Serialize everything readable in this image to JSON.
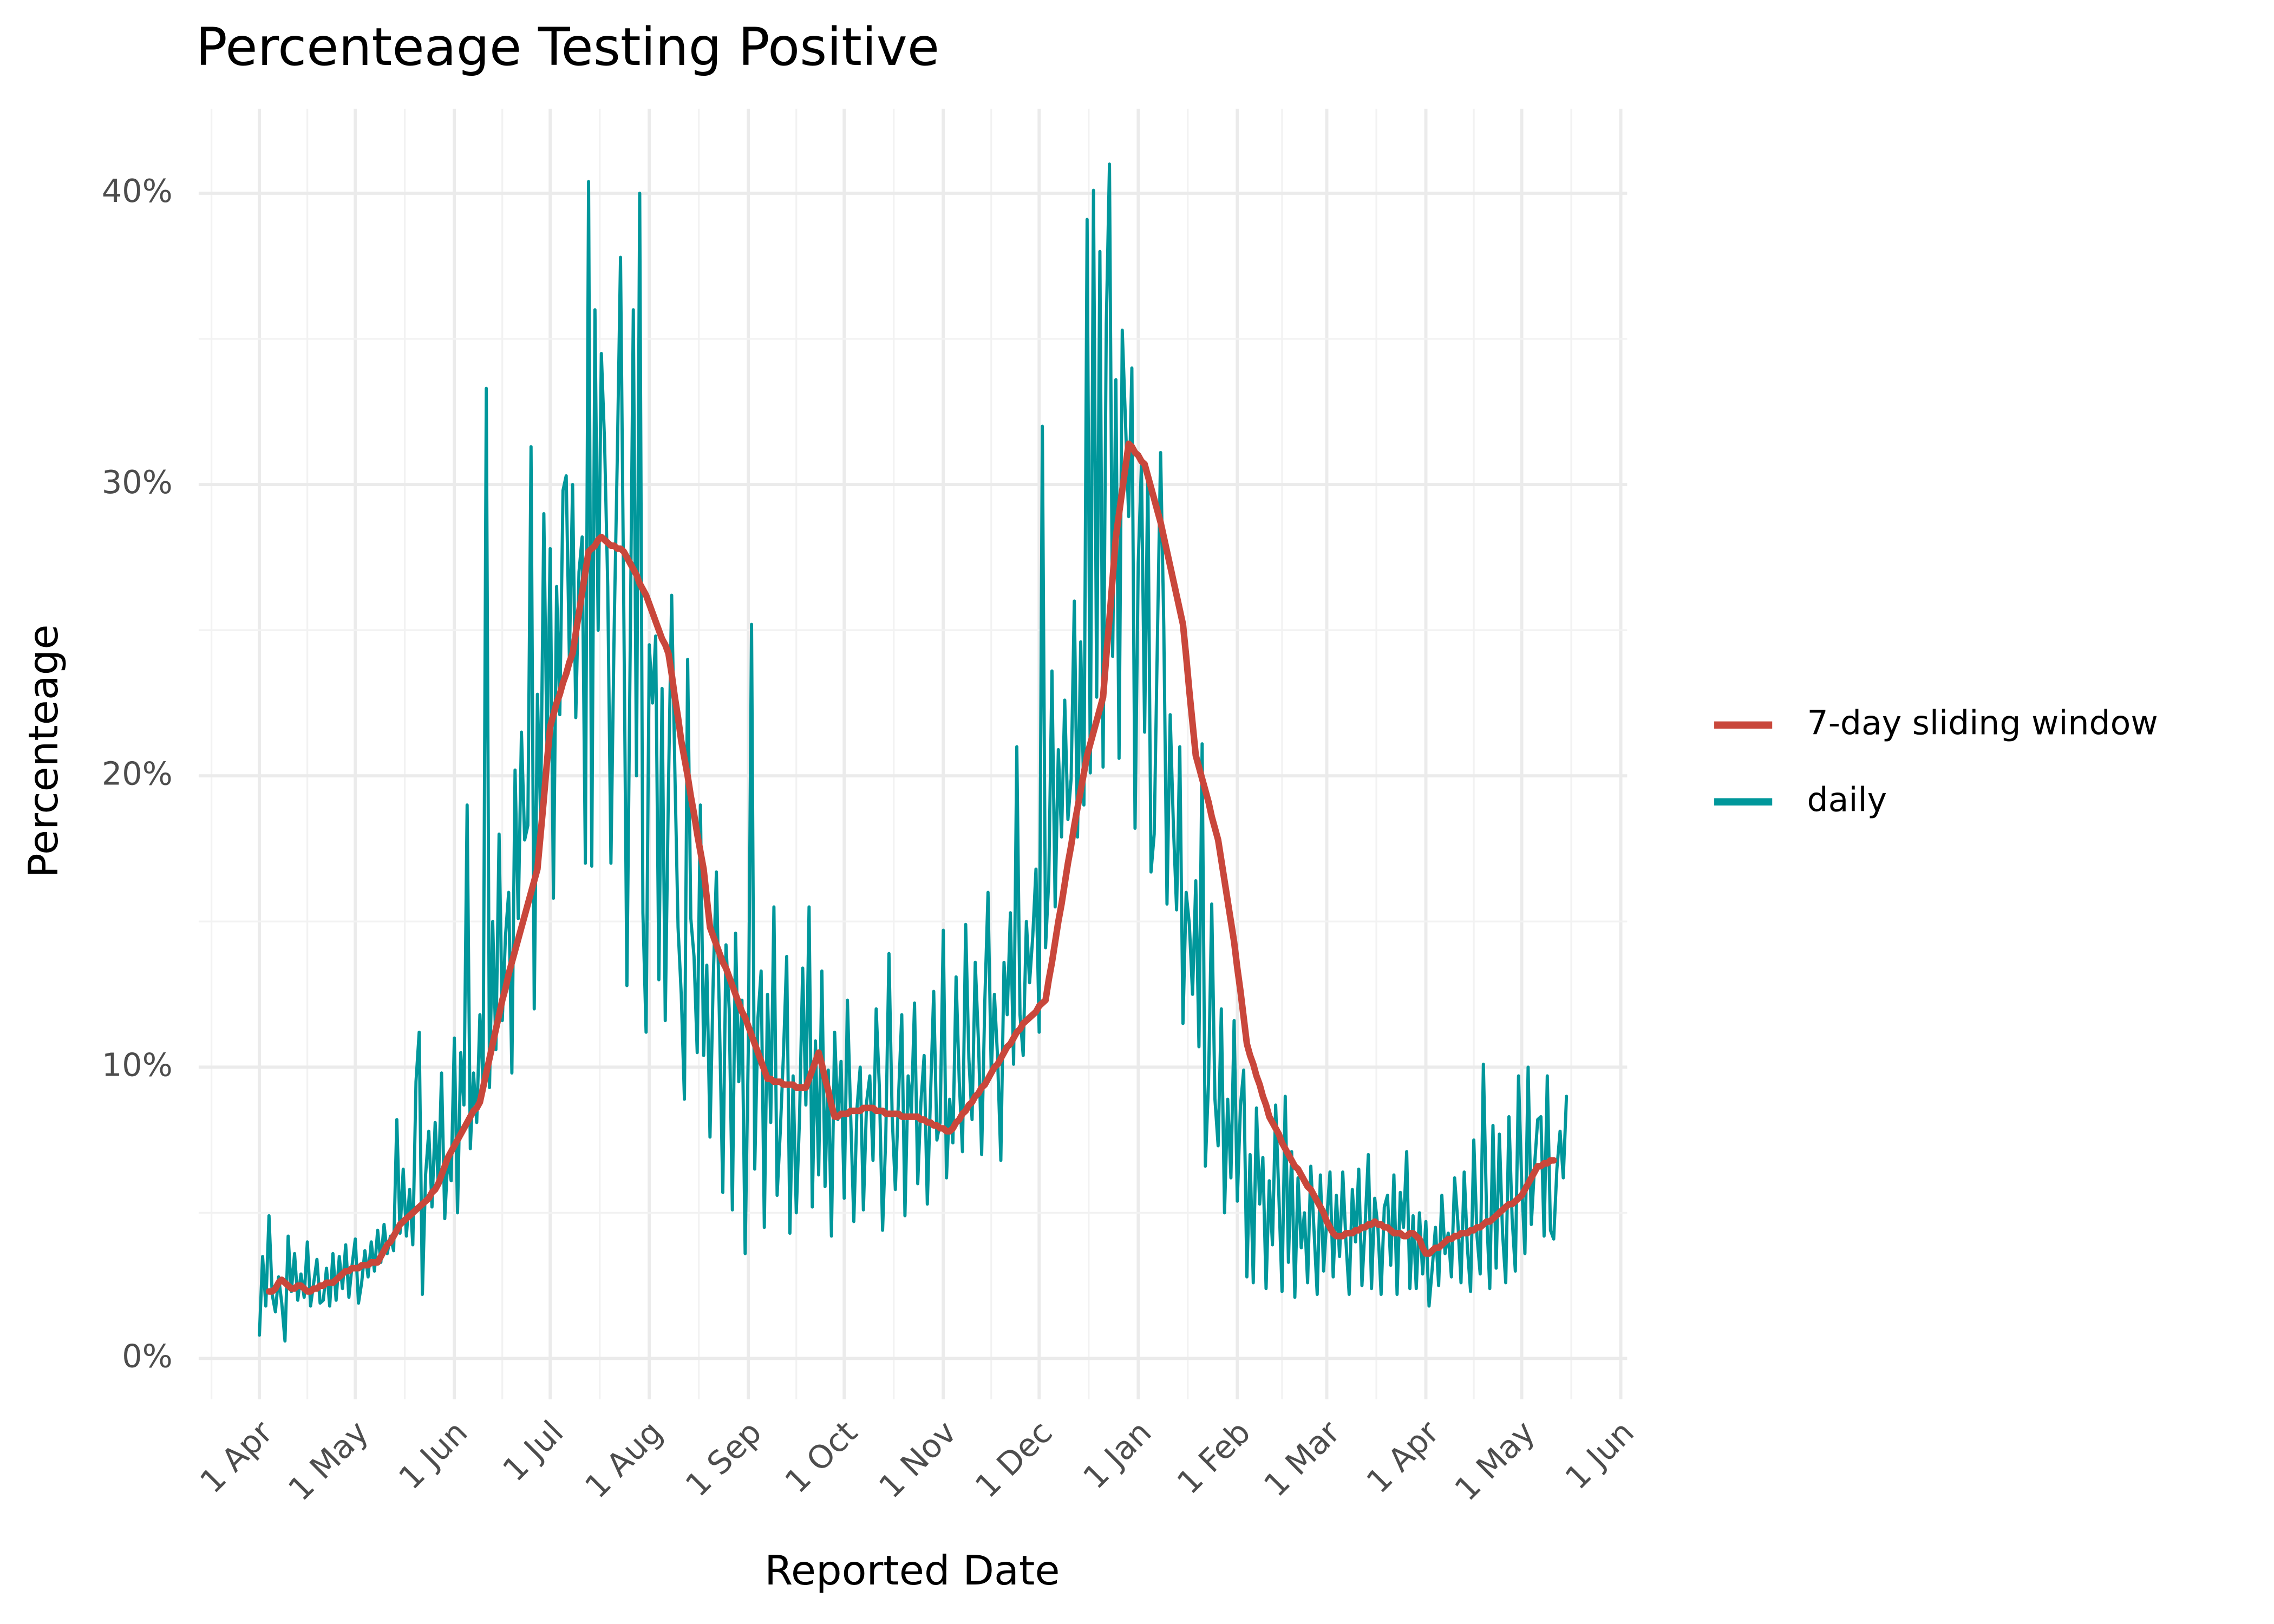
{
  "chart_data": {
    "type": "line",
    "title": "Percenteage Testing Positive",
    "x_label": "Reported Date",
    "y_label": "Percenteage",
    "grid": true,
    "legend_position": "right",
    "xlim": [
      -19,
      428
    ],
    "ylim": [
      -1.4,
      42.9
    ],
    "xticks": [
      {
        "value": 0,
        "label": "1 Apr"
      },
      {
        "value": 30,
        "label": "1 May"
      },
      {
        "value": 61,
        "label": "1 Jun"
      },
      {
        "value": 91,
        "label": "1 Jul"
      },
      {
        "value": 122,
        "label": "1 Aug"
      },
      {
        "value": 153,
        "label": "1 Sep"
      },
      {
        "value": 183,
        "label": "1 Oct"
      },
      {
        "value": 214,
        "label": "1 Nov"
      },
      {
        "value": 244,
        "label": "1 Dec"
      },
      {
        "value": 275,
        "label": "1 Jan"
      },
      {
        "value": 306,
        "label": "1 Feb"
      },
      {
        "value": 334,
        "label": "1 Mar"
      },
      {
        "value": 365,
        "label": "1 Apr"
      },
      {
        "value": 395,
        "label": "1 May"
      },
      {
        "value": 426,
        "label": "1 Jun"
      }
    ],
    "yticks": [
      {
        "value": 0,
        "label": "0%"
      },
      {
        "value": 10,
        "label": "10%"
      },
      {
        "value": 20,
        "label": "20%"
      },
      {
        "value": 30,
        "label": "30%"
      },
      {
        "value": 40,
        "label": "40%"
      }
    ],
    "x": [
      0,
      1,
      2,
      3,
      4,
      5,
      6,
      7,
      8,
      9,
      10,
      11,
      12,
      13,
      14,
      15,
      16,
      17,
      18,
      19,
      20,
      21,
      22,
      23,
      24,
      25,
      26,
      27,
      28,
      29,
      30,
      31,
      32,
      33,
      34,
      35,
      36,
      37,
      38,
      39,
      40,
      41,
      42,
      43,
      44,
      45,
      46,
      47,
      48,
      49,
      50,
      51,
      52,
      53,
      54,
      55,
      56,
      57,
      58,
      59,
      60,
      61,
      62,
      63,
      64,
      65,
      66,
      67,
      68,
      69,
      70,
      71,
      72,
      73,
      74,
      75,
      76,
      77,
      78,
      79,
      80,
      81,
      82,
      83,
      84,
      85,
      86,
      87,
      88,
      89,
      90,
      91,
      92,
      93,
      94,
      95,
      96,
      97,
      98,
      99,
      100,
      101,
      102,
      103,
      104,
      105,
      106,
      107,
      108,
      109,
      110,
      111,
      112,
      113,
      114,
      115,
      116,
      117,
      118,
      119,
      120,
      121,
      122,
      123,
      124,
      125,
      126,
      127,
      128,
      129,
      130,
      131,
      132,
      133,
      134,
      135,
      136,
      137,
      138,
      139,
      140,
      141,
      142,
      143,
      144,
      145,
      146,
      147,
      148,
      149,
      150,
      151,
      152,
      153,
      154,
      155,
      156,
      157,
      158,
      159,
      160,
      161,
      162,
      163,
      164,
      165,
      166,
      167,
      168,
      169,
      170,
      171,
      172,
      173,
      174,
      175,
      176,
      177,
      178,
      179,
      180,
      181,
      182,
      183,
      184,
      185,
      186,
      187,
      188,
      189,
      190,
      191,
      192,
      193,
      194,
      195,
      196,
      197,
      198,
      199,
      200,
      201,
      202,
      203,
      204,
      205,
      206,
      207,
      208,
      209,
      210,
      211,
      212,
      213,
      214,
      215,
      216,
      217,
      218,
      219,
      220,
      221,
      222,
      223,
      224,
      225,
      226,
      227,
      228,
      229,
      230,
      231,
      232,
      233,
      234,
      235,
      236,
      237,
      238,
      239,
      240,
      241,
      242,
      243,
      244,
      245,
      246,
      247,
      248,
      249,
      250,
      251,
      252,
      253,
      254,
      255,
      256,
      257,
      258,
      259,
      260,
      261,
      262,
      263,
      264,
      265,
      266,
      267,
      268,
      269,
      270,
      271,
      272,
      273,
      274,
      275,
      276,
      277,
      278,
      279,
      280,
      281,
      282,
      283,
      284,
      285,
      286,
      287,
      288,
      289,
      290,
      291,
      292,
      293,
      294,
      295,
      296,
      297,
      298,
      299,
      300,
      301,
      302,
      303,
      304,
      305,
      306,
      307,
      308,
      309,
      310,
      311,
      312,
      313,
      314,
      315,
      316,
      317,
      318,
      319,
      320,
      321,
      322,
      323,
      324,
      325,
      326,
      327,
      328,
      329,
      330,
      331,
      332,
      333,
      334,
      335,
      336,
      337,
      338,
      339,
      340,
      341,
      342,
      343,
      344,
      345,
      346,
      347,
      348,
      349,
      350,
      351,
      352,
      353,
      354,
      355,
      356,
      357,
      358,
      359,
      360,
      361,
      362,
      363,
      364,
      365,
      366,
      367,
      368,
      369,
      370,
      371,
      372,
      373,
      374,
      375,
      376,
      377,
      378,
      379,
      380,
      381,
      382,
      383,
      384,
      385,
      386,
      387,
      388,
      389,
      390,
      391,
      392,
      393,
      394,
      395,
      396,
      397,
      398,
      399,
      400,
      401,
      402,
      403,
      404,
      405,
      406,
      407,
      408,
      409
    ],
    "series": [
      {
        "name": "7-day sliding window",
        "color": "#c9473b",
        "values": [
          null,
          null,
          null,
          2.3,
          2.3,
          2.4,
          2.6,
          2.7,
          2.6,
          2.5,
          2.4,
          2.4,
          2.5,
          2.5,
          2.4,
          2.3,
          2.3,
          2.4,
          2.4,
          2.5,
          2.5,
          2.6,
          2.6,
          2.6,
          2.7,
          2.8,
          2.9,
          3.0,
          3.0,
          3.1,
          3.1,
          3.1,
          3.2,
          3.2,
          3.2,
          3.3,
          3.3,
          3.3,
          3.5,
          3.7,
          3.9,
          4.0,
          4.2,
          4.4,
          4.6,
          4.7,
          4.8,
          4.9,
          5.0,
          5.1,
          5.2,
          5.3,
          5.4,
          5.5,
          5.7,
          5.8,
          6.0,
          6.3,
          6.6,
          6.9,
          7.1,
          7.3,
          7.5,
          7.7,
          7.9,
          8.1,
          8.3,
          8.5,
          8.6,
          8.8,
          9.3,
          9.8,
          10.3,
          10.8,
          11.3,
          11.8,
          12.3,
          12.7,
          13.2,
          13.6,
          14.0,
          14.4,
          14.8,
          15.2,
          15.6,
          16.0,
          16.4,
          16.8,
          18.0,
          19.2,
          20.5,
          21.7,
          22.1,
          22.5,
          22.8,
          23.2,
          23.5,
          23.9,
          24.2,
          24.9,
          25.6,
          26.3,
          27.0,
          27.7,
          27.8,
          27.9,
          28.1,
          28.2,
          28.1,
          28.0,
          27.9,
          27.9,
          27.8,
          27.8,
          27.7,
          27.5,
          27.3,
          27.1,
          26.9,
          26.6,
          26.4,
          26.2,
          25.9,
          25.6,
          25.3,
          25.0,
          24.7,
          24.5,
          24.2,
          23.5,
          22.7,
          22.0,
          21.2,
          20.6,
          20.0,
          19.3,
          18.7,
          18.0,
          17.4,
          16.8,
          15.8,
          14.8,
          14.5,
          14.2,
          13.9,
          13.6,
          13.4,
          13.1,
          12.8,
          12.5,
          12.2,
          11.9,
          11.7,
          11.4,
          11.1,
          10.8,
          10.5,
          10.2,
          9.9,
          9.6,
          9.6,
          9.5,
          9.5,
          9.5,
          9.4,
          9.4,
          9.4,
          9.4,
          9.3,
          9.3,
          9.3,
          9.3,
          9.6,
          9.9,
          10.2,
          10.5,
          10.1,
          9.6,
          9.2,
          8.7,
          8.3,
          8.3,
          8.4,
          8.4,
          8.4,
          8.5,
          8.5,
          8.5,
          8.5,
          8.6,
          8.6,
          8.6,
          8.6,
          8.5,
          8.5,
          8.5,
          8.4,
          8.4,
          8.4,
          8.4,
          8.4,
          8.3,
          8.3,
          8.3,
          8.3,
          8.3,
          8.3,
          8.2,
          8.2,
          8.1,
          8.1,
          8.0,
          8.0,
          7.9,
          7.9,
          7.8,
          7.8,
          7.9,
          8.1,
          8.2,
          8.4,
          8.5,
          8.7,
          8.8,
          9.0,
          9.1,
          9.3,
          9.4,
          9.6,
          9.8,
          10.0,
          10.1,
          10.3,
          10.5,
          10.7,
          10.8,
          11.0,
          11.2,
          11.3,
          11.5,
          11.6,
          11.7,
          11.8,
          11.9,
          12.1,
          12.2,
          12.3,
          13.0,
          13.6,
          14.3,
          15.0,
          15.6,
          16.3,
          17.0,
          17.6,
          18.3,
          18.9,
          19.5,
          20.1,
          20.7,
          21.1,
          21.5,
          21.9,
          22.3,
          22.7,
          24.1,
          25.4,
          26.8,
          28.2,
          29.0,
          29.8,
          30.6,
          31.4,
          31.3,
          31.1,
          31.0,
          30.8,
          30.7,
          30.3,
          29.9,
          29.5,
          29.1,
          28.7,
          28.2,
          27.7,
          27.2,
          26.7,
          26.2,
          25.7,
          25.2,
          24.1,
          22.9,
          21.8,
          20.7,
          20.3,
          19.9,
          19.5,
          19.1,
          18.6,
          18.2,
          17.8,
          17.1,
          16.4,
          15.7,
          15.0,
          14.3,
          13.4,
          12.6,
          11.7,
          10.8,
          10.4,
          10.1,
          9.7,
          9.4,
          9.0,
          8.7,
          8.3,
          8.1,
          7.9,
          7.7,
          7.4,
          7.2,
          7.0,
          6.8,
          6.6,
          6.5,
          6.3,
          6.1,
          5.9,
          5.8,
          5.6,
          5.4,
          5.2,
          5.0,
          4.7,
          4.5,
          4.3,
          4.2,
          4.2,
          4.2,
          4.3,
          4.3,
          4.3,
          4.4,
          4.4,
          4.5,
          4.5,
          4.6,
          4.6,
          4.7,
          4.6,
          4.6,
          4.5,
          4.5,
          4.4,
          4.3,
          4.3,
          4.3,
          4.2,
          4.2,
          4.3,
          4.3,
          4.2,
          4.1,
          3.8,
          3.6,
          3.6,
          3.7,
          3.8,
          3.8,
          3.9,
          4.0,
          4.1,
          4.1,
          4.2,
          4.2,
          4.3,
          4.3,
          4.3,
          4.4,
          4.4,
          4.5,
          4.5,
          4.6,
          4.7,
          4.7,
          4.8,
          4.9,
          5.0,
          5.1,
          5.2,
          5.3,
          5.3,
          5.4,
          5.5,
          5.6,
          5.8,
          6.0,
          6.2,
          6.4,
          6.6,
          6.6,
          6.7,
          6.7,
          6.8,
          6.8,
          null,
          null,
          null,
          null
        ]
      },
      {
        "name": "daily",
        "color": "#00979b",
        "values": [
          0.8,
          3.5,
          1.8,
          4.9,
          2.2,
          1.6,
          2.8,
          1.9,
          0.6,
          4.2,
          2.3,
          3.6,
          2.0,
          2.9,
          2.1,
          4.0,
          1.8,
          2.6,
          3.4,
          1.9,
          2.0,
          3.1,
          1.8,
          3.6,
          2.0,
          3.5,
          2.4,
          3.9,
          2.1,
          3.2,
          4.1,
          1.9,
          2.6,
          3.7,
          2.8,
          4.0,
          3.0,
          4.4,
          3.3,
          4.6,
          3.6,
          4.2,
          3.7,
          8.2,
          4.3,
          6.5,
          4.2,
          5.8,
          3.9,
          9.5,
          11.2,
          2.2,
          6.3,
          7.8,
          5.2,
          8.1,
          5.9,
          9.8,
          4.8,
          7.0,
          6.1,
          11.0,
          5.0,
          10.5,
          8.7,
          19.0,
          7.2,
          9.8,
          8.1,
          11.8,
          9.4,
          33.3,
          9.3,
          15.0,
          10.6,
          18.0,
          11.6,
          14.5,
          16.0,
          9.8,
          20.2,
          15.1,
          21.5,
          17.8,
          18.3,
          31.3,
          12.0,
          22.8,
          18.5,
          29.0,
          20.8,
          27.8,
          15.8,
          26.5,
          22.1,
          29.8,
          30.3,
          24.0,
          30.0,
          22.0,
          27.0,
          28.2,
          17.0,
          40.4,
          16.9,
          36.0,
          25.0,
          34.5,
          31.5,
          26.5,
          17.0,
          25.0,
          31.0,
          37.8,
          26.0,
          12.8,
          24.0,
          36.0,
          20.0,
          40.0,
          15.3,
          11.2,
          24.5,
          22.5,
          24.8,
          13.0,
          23.0,
          11.6,
          19.6,
          26.2,
          20.2,
          14.8,
          12.5,
          8.9,
          24.0,
          15.1,
          13.8,
          10.5,
          19.0,
          10.4,
          13.5,
          7.6,
          13.0,
          16.7,
          11.4,
          5.7,
          14.2,
          12.0,
          5.1,
          14.6,
          9.5,
          12.3,
          3.6,
          10.8,
          25.2,
          6.5,
          11.7,
          13.3,
          4.5,
          12.5,
          8.1,
          15.5,
          5.6,
          7.8,
          10.5,
          13.8,
          4.3,
          9.7,
          5.0,
          8.2,
          13.4,
          8.7,
          15.5,
          5.2,
          10.9,
          6.3,
          13.3,
          5.9,
          9.9,
          4.2,
          11.2,
          8.2,
          10.2,
          5.5,
          12.3,
          8.4,
          4.7,
          8.6,
          10.0,
          5.1,
          8.8,
          9.7,
          6.8,
          12.0,
          9.3,
          4.4,
          7.6,
          13.9,
          8.3,
          5.8,
          9.0,
          11.8,
          4.9,
          9.7,
          8.4,
          12.2,
          6.0,
          8.8,
          10.4,
          5.3,
          9.0,
          12.6,
          7.5,
          8.1,
          14.7,
          6.2,
          8.9,
          7.4,
          13.1,
          9.5,
          7.1,
          14.9,
          10.3,
          8.2,
          13.6,
          10.9,
          7.0,
          12.3,
          16.0,
          9.8,
          12.5,
          10.3,
          6.8,
          13.6,
          11.8,
          15.3,
          10.1,
          21.0,
          11.8,
          10.4,
          15.0,
          12.9,
          14.5,
          16.8,
          11.2,
          32.0,
          14.1,
          16.4,
          23.6,
          15.5,
          20.9,
          17.9,
          22.6,
          18.5,
          19.9,
          26.0,
          17.9,
          24.6,
          19.0,
          39.1,
          20.1,
          40.1,
          22.7,
          38.0,
          20.3,
          35.5,
          41.0,
          24.1,
          33.6,
          20.6,
          35.3,
          32.2,
          28.9,
          34.0,
          18.2,
          27.3,
          30.7,
          21.5,
          30.5,
          16.7,
          18.0,
          24.7,
          31.1,
          25.1,
          15.6,
          22.1,
          18.3,
          15.4,
          21.0,
          11.5,
          16.0,
          14.9,
          12.5,
          16.4,
          10.7,
          21.1,
          6.6,
          9.5,
          15.6,
          8.9,
          7.3,
          12.0,
          5.0,
          8.9,
          6.2,
          11.6,
          5.4,
          8.7,
          9.9,
          2.8,
          7.0,
          2.6,
          8.6,
          5.3,
          6.9,
          2.4,
          6.1,
          3.9,
          8.7,
          5.6,
          2.3,
          9.0,
          3.3,
          7.1,
          2.1,
          6.2,
          3.8,
          5.0,
          2.6,
          6.6,
          4.4,
          2.2,
          6.3,
          3.0,
          4.8,
          6.4,
          2.8,
          5.6,
          3.5,
          6.4,
          4.0,
          2.2,
          5.8,
          4.0,
          6.5,
          2.5,
          4.6,
          7.0,
          2.4,
          5.5,
          4.5,
          2.2,
          5.2,
          5.6,
          3.2,
          6.3,
          2.2,
          5.7,
          4.5,
          7.1,
          2.4,
          4.9,
          2.4,
          5.0,
          2.9,
          4.7,
          1.8,
          3.1,
          4.5,
          2.5,
          5.6,
          3.6,
          4.3,
          2.8,
          6.2,
          4.7,
          2.6,
          6.4,
          3.8,
          2.3,
          7.5,
          4.2,
          2.9,
          10.1,
          5.0,
          2.4,
          8.0,
          3.1,
          7.7,
          4.3,
          2.6,
          8.3,
          4.8,
          3.0,
          9.7,
          6.0,
          3.6,
          10.0,
          4.6,
          6.6,
          8.2,
          8.3,
          4.2,
          9.7,
          4.4,
          4.1,
          6.5,
          7.8,
          6.2,
          9.0
        ]
      }
    ]
  }
}
